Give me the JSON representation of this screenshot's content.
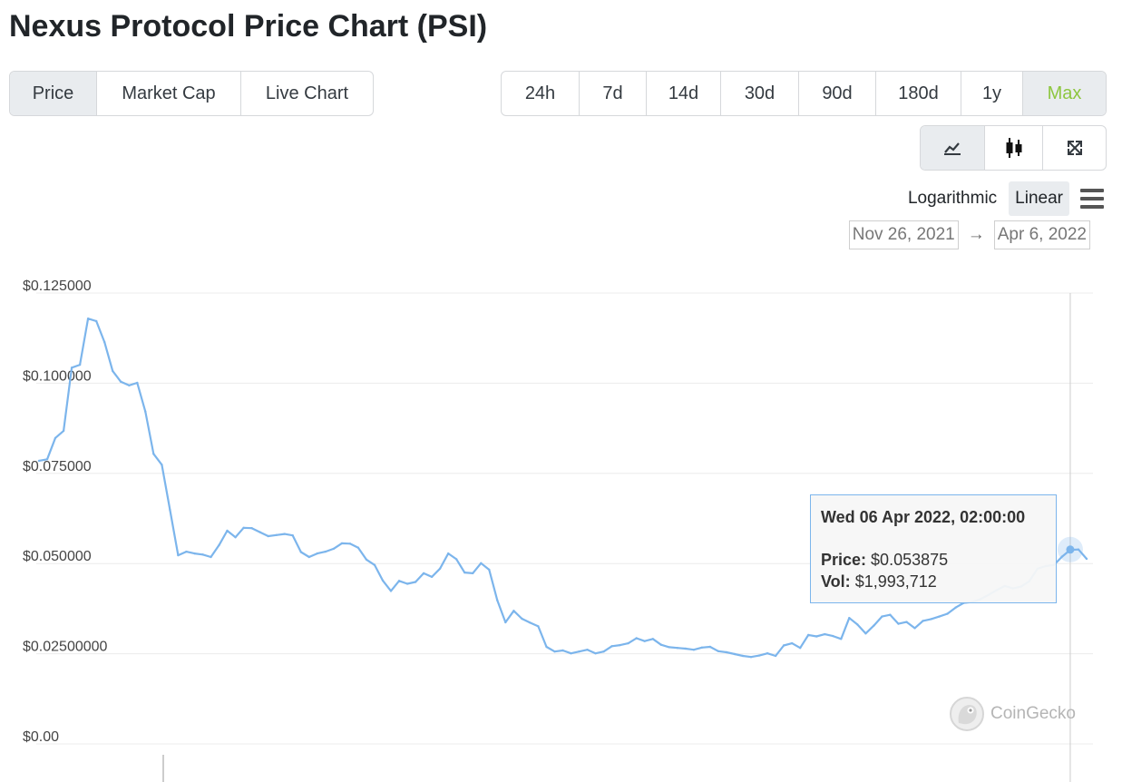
{
  "page": {
    "title": "Nexus Protocol Price Chart (PSI)"
  },
  "tabs": [
    {
      "label": "Price",
      "active": true
    },
    {
      "label": "Market Cap",
      "active": false
    },
    {
      "label": "Live Chart",
      "active": false
    }
  ],
  "ranges": [
    {
      "label": "24h",
      "active": false
    },
    {
      "label": "7d",
      "active": false
    },
    {
      "label": "14d",
      "active": false
    },
    {
      "label": "30d",
      "active": false
    },
    {
      "label": "90d",
      "active": false
    },
    {
      "label": "180d",
      "active": false
    },
    {
      "label": "1y",
      "active": false
    },
    {
      "label": "Max",
      "active": true
    }
  ],
  "chart_types": [
    {
      "icon": "line-chart-icon",
      "active": true
    },
    {
      "icon": "candlestick-icon",
      "active": false
    },
    {
      "icon": "fullscreen-icon",
      "active": false
    }
  ],
  "scale": {
    "logarithmic": "Logarithmic",
    "linear": "Linear",
    "selected": "Linear"
  },
  "date_range": {
    "from": "Nov 26, 2021",
    "arrow": "→",
    "to": "Apr 6, 2022"
  },
  "tooltip": {
    "title": "Wed 06 Apr 2022, 02:00:00",
    "price_label": "Price:",
    "price_value": "$0.053875",
    "vol_label": "Vol:",
    "vol_value": "$1,993,712"
  },
  "credit": {
    "text": "CoinGecko"
  },
  "chart_data": {
    "type": "line",
    "title": "",
    "xlabel": "",
    "ylabel": "",
    "x_range": [
      "2021-11-26",
      "2022-04-06"
    ],
    "ylim": [
      0,
      0.125
    ],
    "y_ticks": [
      {
        "value": 0,
        "label": "$0.00"
      },
      {
        "value": 0.025,
        "label": "$0.02500000"
      },
      {
        "value": 0.05,
        "label": "$0.050000"
      },
      {
        "value": 0.075,
        "label": "$0.075000"
      },
      {
        "value": 0.1,
        "label": "$0.100000"
      },
      {
        "value": 0.125,
        "label": "$0.125000"
      }
    ],
    "grid": true,
    "color": "#7cb5ec",
    "series": [
      {
        "values": [
          0.0785,
          0.0789,
          0.0848,
          0.0868,
          0.1043,
          0.1051,
          0.1179,
          0.1172,
          0.1114,
          0.1034,
          0.1004,
          0.0994,
          0.1001,
          0.0921,
          0.0804,
          0.0774,
          0.0649,
          0.0523,
          0.0533,
          0.0528,
          0.0525,
          0.0518,
          0.0551,
          0.0591,
          0.0573,
          0.0599,
          0.0598,
          0.0587,
          0.0576,
          0.0579,
          0.0582,
          0.0578,
          0.0532,
          0.0518,
          0.0528,
          0.0533,
          0.0541,
          0.0556,
          0.0555,
          0.0544,
          0.0511,
          0.0496,
          0.0453,
          0.0424,
          0.0452,
          0.0444,
          0.0449,
          0.0473,
          0.0463,
          0.0486,
          0.0528,
          0.0512,
          0.0475,
          0.0473,
          0.0501,
          0.0483,
          0.0398,
          0.0337,
          0.0369,
          0.0347,
          0.0336,
          0.0326,
          0.0269,
          0.0256,
          0.0259,
          0.0251,
          0.0256,
          0.0261,
          0.0251,
          0.0256,
          0.0271,
          0.0274,
          0.0279,
          0.0293,
          0.0285,
          0.0291,
          0.0275,
          0.0268,
          0.0266,
          0.0264,
          0.0261,
          0.0267,
          0.0269,
          0.0257,
          0.0254,
          0.0249,
          0.0244,
          0.0241,
          0.0245,
          0.0251,
          0.0244,
          0.0273,
          0.0279,
          0.0266,
          0.0302,
          0.0298,
          0.0304,
          0.0299,
          0.0291,
          0.0349,
          0.0331,
          0.0306,
          0.0328,
          0.0353,
          0.0358,
          0.0333,
          0.0338,
          0.0321,
          0.0341,
          0.0346,
          0.0353,
          0.0361,
          0.0378,
          0.0391,
          0.0393,
          0.0401,
          0.0413,
          0.0426,
          0.0438,
          0.0431,
          0.0436,
          0.0451,
          0.0486,
          0.0493,
          0.0496,
          0.0519,
          0.0538,
          0.0539,
          0.0513
        ]
      }
    ],
    "highlight": {
      "index": 126,
      "value": 0.053875
    }
  }
}
